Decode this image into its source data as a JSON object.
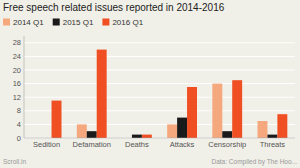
{
  "chart_data": {
    "type": "bar",
    "title": "Free speech related issues reported in 2014-2016",
    "categories": [
      "Sedition",
      "Defamation",
      "Deaths",
      "Attacks",
      "Censorship",
      "Threats"
    ],
    "series": [
      {
        "name": "2014 Q1",
        "color": "#f5a87e",
        "values": [
          0,
          4,
          0,
          4,
          16,
          5
        ]
      },
      {
        "name": "2015 Q1",
        "color": "#1a1a1a",
        "values": [
          0,
          2,
          1,
          6,
          2,
          1
        ]
      },
      {
        "name": "2016 Q1",
        "color": "#f04e23",
        "values": [
          11,
          26,
          1,
          15,
          17,
          7
        ]
      }
    ],
    "ylim": [
      0,
      30
    ],
    "yticks": [
      0,
      4,
      8,
      12,
      16,
      20,
      24,
      28
    ],
    "grid": true,
    "legend": "upper left",
    "annotations": [
      "Scroll.in",
      "Data: Compiled by The Hoo..."
    ]
  }
}
